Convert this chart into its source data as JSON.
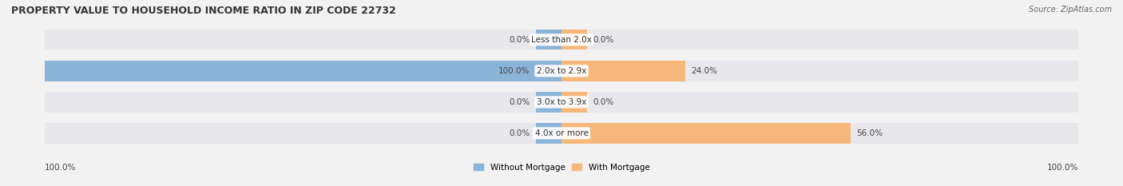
{
  "title": "PROPERTY VALUE TO HOUSEHOLD INCOME RATIO IN ZIP CODE 22732",
  "source": "Source: ZipAtlas.com",
  "categories": [
    "Less than 2.0x",
    "2.0x to 2.9x",
    "3.0x to 3.9x",
    "4.0x or more"
  ],
  "without_mortgage": [
    0.0,
    100.0,
    0.0,
    0.0
  ],
  "with_mortgage": [
    0.0,
    24.0,
    0.0,
    56.0
  ],
  "color_without": "#8AB4D8",
  "color_with": "#F5B87A",
  "bg_color": "#F2F2F2",
  "row_bg_color": "#E8E8EC",
  "stub_size": 5.0,
  "max_val": 100.0,
  "legend_labels": [
    "Without Mortgage",
    "With Mortgage"
  ],
  "title_fontsize": 9,
  "label_fontsize": 7.5,
  "pct_fontsize": 7.5,
  "source_fontsize": 7,
  "legend_fontsize": 7.5
}
